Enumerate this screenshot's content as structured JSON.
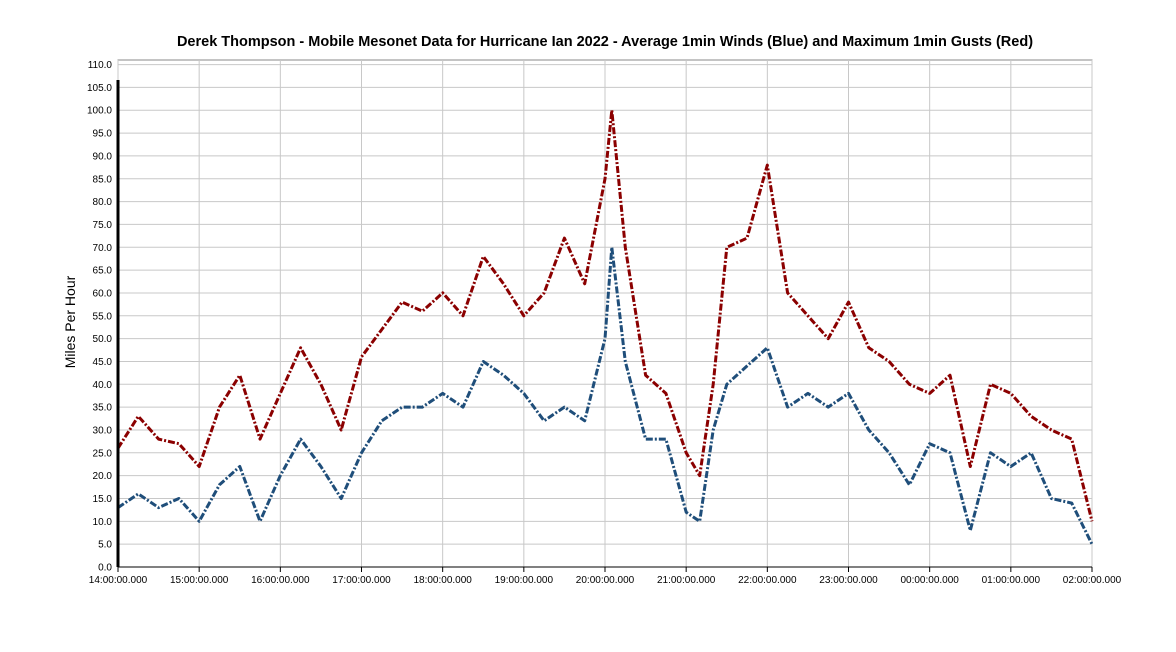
{
  "chart_data": {
    "type": "line",
    "title": "Derek Thompson - Mobile Mesonet Data for Hurricane Ian 2022 - Average 1min Winds (Blue) and Maximum 1min Gusts (Red)",
    "xlabel": "",
    "ylabel": "Miles Per Hour",
    "ylim": [
      0,
      111
    ],
    "y_ticks": [
      "0.0",
      "5.0",
      "10.0",
      "15.0",
      "20.0",
      "25.0",
      "30.0",
      "35.0",
      "40.0",
      "45.0",
      "50.0",
      "55.0",
      "60.0",
      "65.0",
      "70.0",
      "75.0",
      "80.0",
      "85.0",
      "90.0",
      "95.0",
      "100.0",
      "105.0",
      "110.0"
    ],
    "x_ticks": [
      "14:00:00.000",
      "15:00:00.000",
      "16:00:00.000",
      "17:00:00.000",
      "18:00:00.000",
      "19:00:00.000",
      "20:00:00.000",
      "21:00:00.000",
      "22:00:00.000",
      "23:00:00.000",
      "00:00:00.000",
      "01:00:00.000",
      "02:00:00.000"
    ],
    "xlim": [
      "14:00",
      "02:00"
    ],
    "grid": true,
    "x": [
      "14:00",
      "14:15",
      "14:30",
      "14:45",
      "15:00",
      "15:15",
      "15:30",
      "15:45",
      "16:00",
      "16:15",
      "16:30",
      "16:45",
      "17:00",
      "17:15",
      "17:30",
      "17:45",
      "18:00",
      "18:15",
      "18:30",
      "18:45",
      "19:00",
      "19:15",
      "19:30",
      "19:45",
      "20:00",
      "20:05",
      "20:15",
      "20:30",
      "20:45",
      "21:00",
      "21:10",
      "21:20",
      "21:30",
      "21:45",
      "22:00",
      "22:15",
      "22:30",
      "22:45",
      "23:00",
      "23:15",
      "23:30",
      "23:45",
      "00:00",
      "00:15",
      "00:30",
      "00:45",
      "01:00",
      "01:15",
      "01:30",
      "01:45",
      "02:00"
    ],
    "series": [
      {
        "name": "Maximum 1min Gusts (Red)",
        "color": "#8b0000",
        "values": [
          26,
          33,
          28,
          27,
          22,
          35,
          42,
          28,
          38,
          48,
          40,
          30,
          46,
          52,
          58,
          56,
          60,
          55,
          68,
          62,
          55,
          60,
          72,
          62,
          85,
          100,
          70,
          42,
          38,
          25,
          20,
          40,
          70,
          72,
          88,
          60,
          55,
          50,
          58,
          48,
          45,
          40,
          38,
          42,
          22,
          40,
          38,
          33,
          30,
          28,
          10
        ]
      },
      {
        "name": "Average 1min Winds (Blue)",
        "color": "#1f4e7a",
        "values": [
          13,
          16,
          13,
          15,
          10,
          18,
          22,
          10,
          20,
          28,
          22,
          15,
          25,
          32,
          35,
          35,
          38,
          35,
          45,
          42,
          38,
          32,
          35,
          32,
          50,
          70,
          45,
          28,
          28,
          12,
          10,
          30,
          40,
          44,
          48,
          35,
          38,
          35,
          38,
          30,
          25,
          18,
          27,
          25,
          8,
          25,
          22,
          25,
          15,
          14,
          5
        ]
      }
    ]
  }
}
